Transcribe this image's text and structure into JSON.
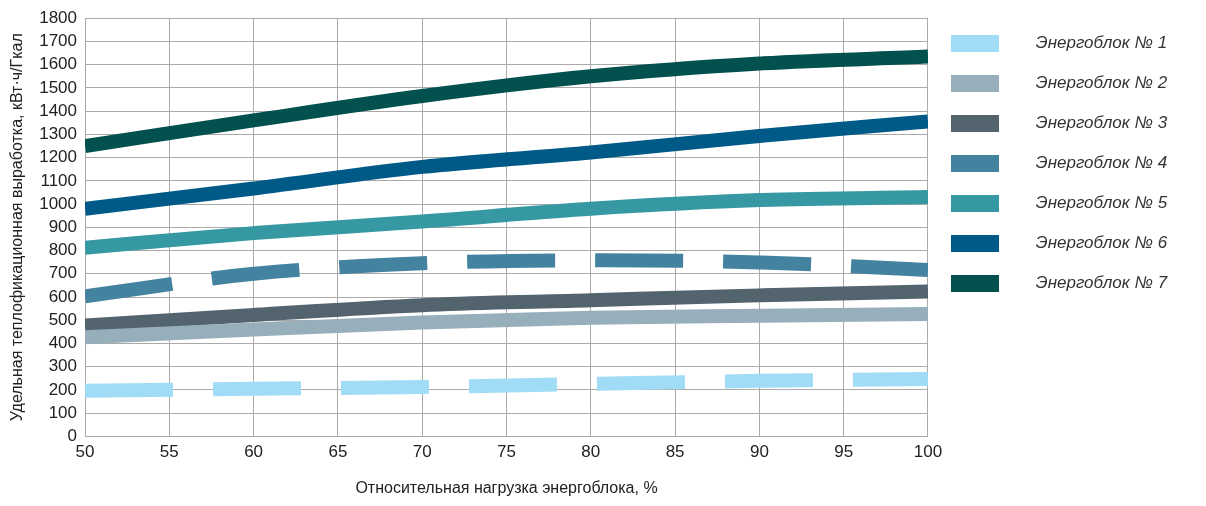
{
  "chart_data": {
    "type": "line",
    "xlabel": "Относительная нагрузка энергоблока, %",
    "ylabel": "Удельная теплофикационная выработка, кВт·ч/Гкал",
    "x": [
      50,
      60,
      70,
      80,
      90,
      100
    ],
    "xlim": [
      50,
      100
    ],
    "xticks": [
      50,
      55,
      60,
      65,
      70,
      75,
      80,
      85,
      90,
      95,
      100
    ],
    "ylim": [
      0,
      1800
    ],
    "yticks": [
      0,
      100,
      200,
      300,
      400,
      500,
      600,
      700,
      800,
      900,
      1000,
      1100,
      1200,
      1300,
      1400,
      1500,
      1600,
      1700,
      1800
    ],
    "grid": true,
    "legend": "right",
    "marker": "none",
    "series": [
      {
        "name": "Энергоблок № 1",
        "color": "#a0dcf6",
        "line_style": "dashed",
        "values": [
          197,
          205,
          213,
          226,
          239,
          247
        ]
      },
      {
        "name": "Энергоблок № 2",
        "color": "#97aebb",
        "values": [
          427,
          460,
          490,
          511,
          519,
          527
        ]
      },
      {
        "name": "Энергоблок № 3",
        "color": "#53646e",
        "values": [
          477,
          523,
          565,
          586,
          607,
          624
        ]
      },
      {
        "name": "Энергоблок № 4",
        "color": "#44839f",
        "line_style": "dashed",
        "values": [
          603,
          700,
          745,
          758,
          749,
          716
        ]
      },
      {
        "name": "Энергоблок № 5",
        "color": "#3598a3",
        "values": [
          812,
          875,
          925,
          980,
          1017,
          1030
        ]
      },
      {
        "name": "Энергоблок № 6",
        "color": "#005a88",
        "values": [
          980,
          1067,
          1160,
          1222,
          1293,
          1356
        ]
      },
      {
        "name": "Энергоблок № 7",
        "color": "#03514f",
        "values": [
          1250,
          1360,
          1465,
          1550,
          1605,
          1635
        ]
      }
    ]
  }
}
